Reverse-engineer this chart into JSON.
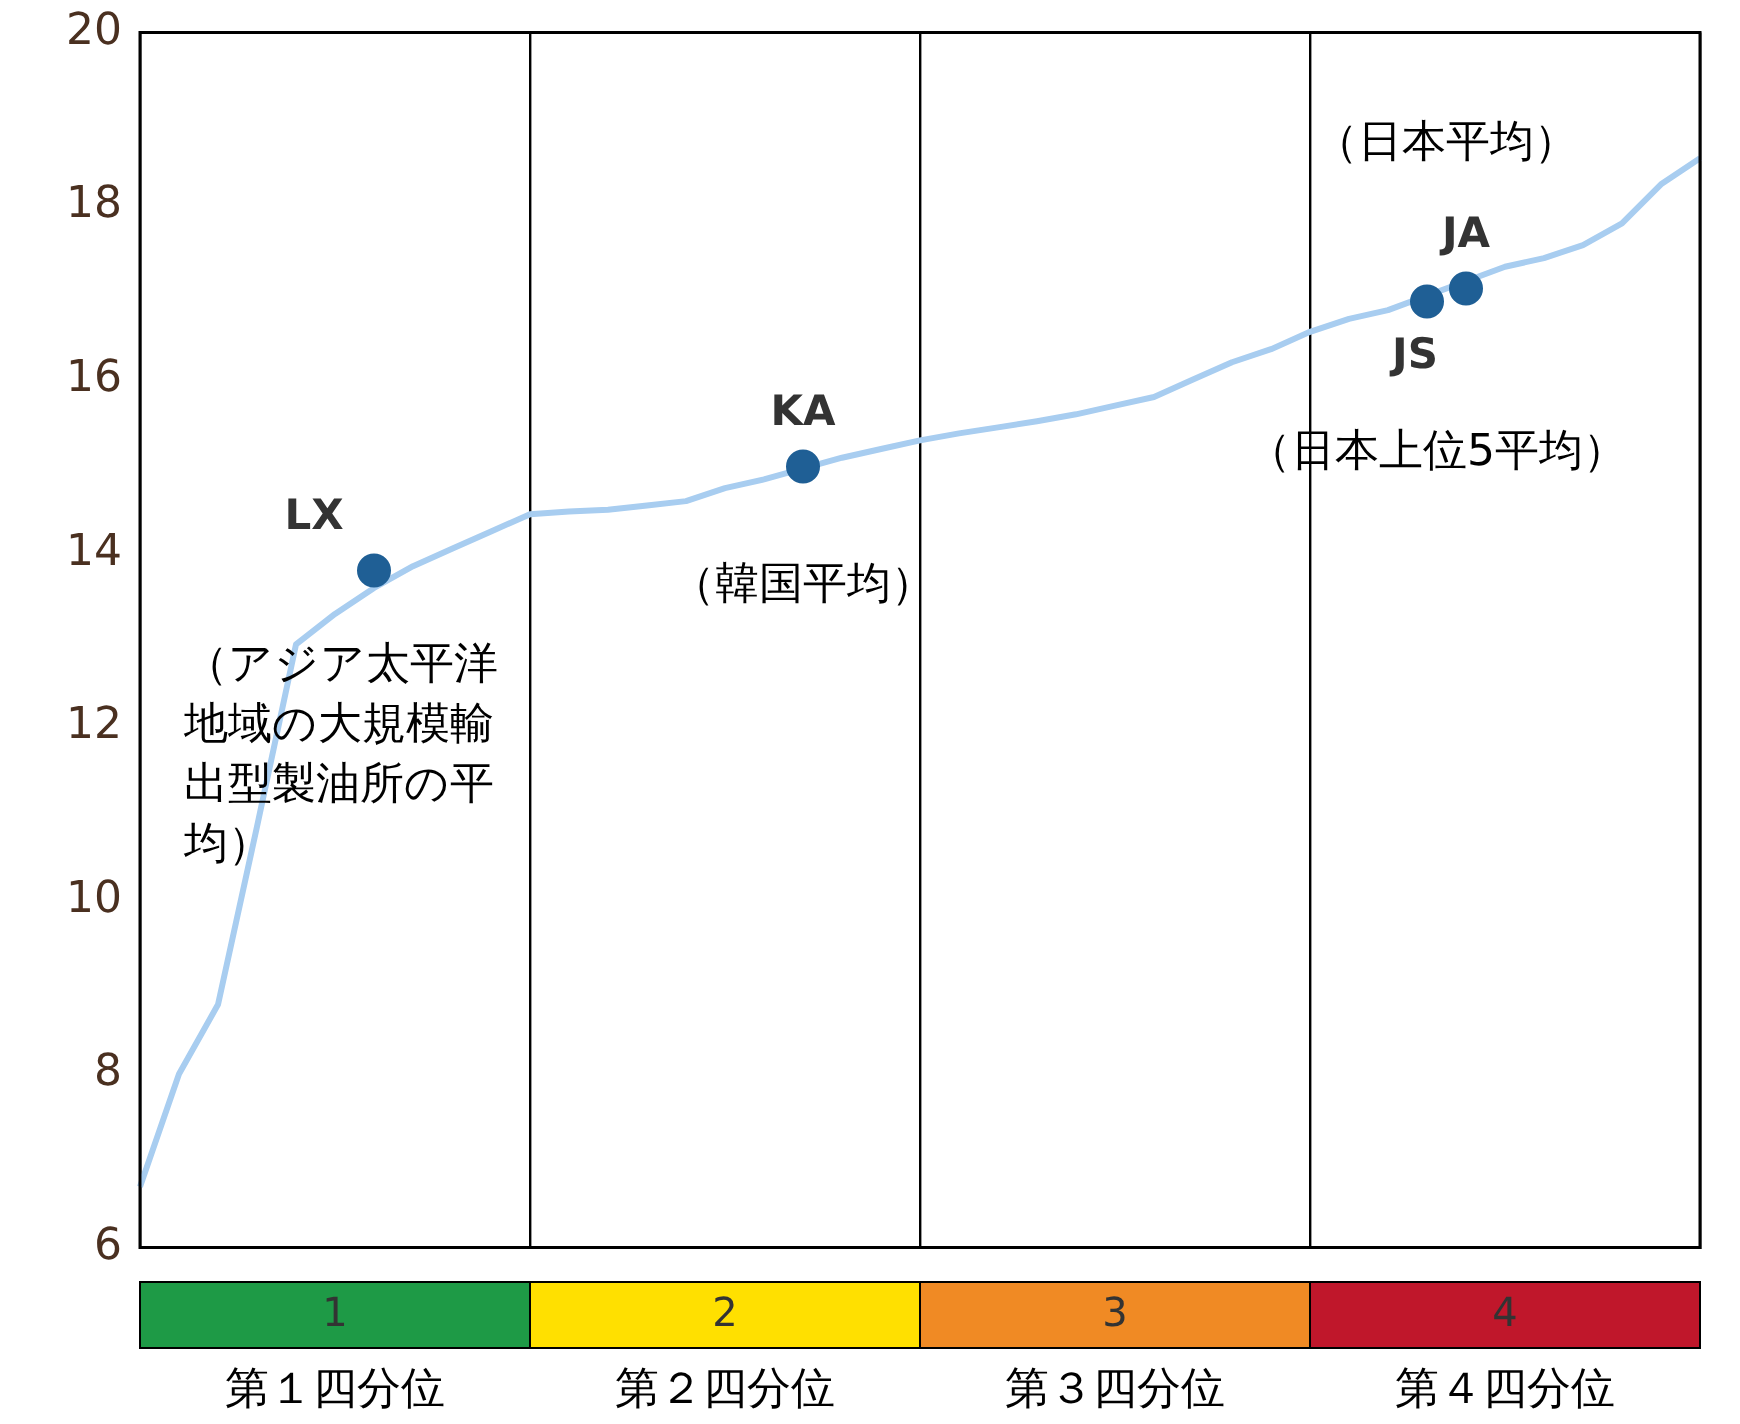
{
  "chart_data": [
    {
      "type": "line",
      "ylim": [
        6,
        20
      ],
      "tick_labels": "y",
      "categories": [
        null,
        null,
        null,
        null,
        null,
        null,
        null,
        null,
        null,
        null,
        null,
        null,
        null,
        null,
        null,
        null,
        null,
        null,
        null,
        null,
        null,
        null,
        null,
        null,
        null,
        null,
        null,
        null,
        null,
        null,
        null,
        null,
        null,
        null,
        null,
        null,
        null,
        null,
        null,
        null,
        null
      ],
      "yticks": [
        6,
        8,
        10,
        12,
        14,
        16,
        18,
        20
      ],
      "grid": "x",
      "legend": false,
      "marker": "none",
      "line_style": "solid",
      "series": [
        {
          "color": "#a8cdf0",
          "values": [
            6.7,
            8.0,
            8.8,
            10.85,
            12.95,
            13.3,
            13.6,
            13.85,
            14.05,
            14.25,
            14.45,
            14.48,
            14.5,
            14.55,
            14.6,
            14.75,
            14.85,
            null,
            15.1,
            15.2,
            15.3,
            15.38,
            15.45,
            15.52,
            15.6,
            15.7,
            15.8,
            16.0,
            16.2,
            16.35,
            16.55,
            16.7,
            16.8,
            null,
            null,
            17.3,
            17.4,
            17.55,
            17.8,
            18.25,
            18.55
          ]
        },
        {
          "type": "scatter",
          "name": "LX",
          "color": "#1f5f95",
          "marker": "circle",
          "values": [
            null,
            null,
            null,
            null,
            null,
            null,
            13.8,
            null,
            null,
            null,
            null,
            null,
            null,
            null,
            null,
            null,
            null,
            null,
            null,
            null,
            null,
            null,
            null,
            null,
            null,
            null,
            null,
            null,
            null,
            null,
            null,
            null,
            null,
            null,
            null,
            null,
            null,
            null,
            null,
            null,
            null
          ]
        },
        {
          "type": "scatter",
          "name": "KA",
          "color": "#1f5f95",
          "marker": "circle",
          "values": [
            null,
            null,
            null,
            null,
            null,
            null,
            null,
            null,
            null,
            null,
            null,
            null,
            null,
            null,
            null,
            null,
            null,
            15.0,
            null,
            null,
            null,
            null,
            null,
            null,
            null,
            null,
            null,
            null,
            null,
            null,
            null,
            null,
            null,
            null,
            null,
            null,
            null,
            null,
            null,
            null,
            null
          ]
        },
        {
          "type": "scatter",
          "name": "JA",
          "color": "#1f5f95",
          "marker": "circle",
          "values": [
            null,
            null,
            null,
            null,
            null,
            null,
            null,
            null,
            null,
            null,
            null,
            null,
            null,
            null,
            null,
            null,
            null,
            null,
            null,
            null,
            null,
            null,
            null,
            null,
            null,
            null,
            null,
            null,
            null,
            null,
            null,
            null,
            null,
            null,
            17.05,
            null,
            null,
            null,
            null,
            null,
            null
          ]
        },
        {
          "type": "scatter",
          "name": "JS",
          "color": "#1f5f95",
          "marker": "circle",
          "values": [
            null,
            null,
            null,
            null,
            null,
            null,
            null,
            null,
            null,
            null,
            null,
            null,
            null,
            null,
            null,
            null,
            null,
            null,
            null,
            null,
            null,
            null,
            null,
            null,
            null,
            null,
            null,
            null,
            null,
            null,
            null,
            null,
            null,
            16.9,
            null,
            null,
            null,
            null,
            null,
            null,
            null
          ]
        }
      ],
      "annotations": [
        {
          "text": "（アジア太平洋地域の大規模輸出型製油所の平均）"
        },
        {
          "text": "（韓国平均）"
        },
        {
          "text": "（日本平均）"
        },
        {
          "text": "（日本上位5平均）"
        }
      ]
    },
    {
      "type": "other",
      "categories": [
        "第１四分位",
        "第２四分位",
        "第３四分位",
        "第４四分位"
      ],
      "values": [
        1,
        2,
        3,
        4
      ],
      "colors": [
        "#1e9a46",
        "#ffe000",
        "#f08a24",
        "#c0172b"
      ],
      "data_labels": true
    }
  ]
}
